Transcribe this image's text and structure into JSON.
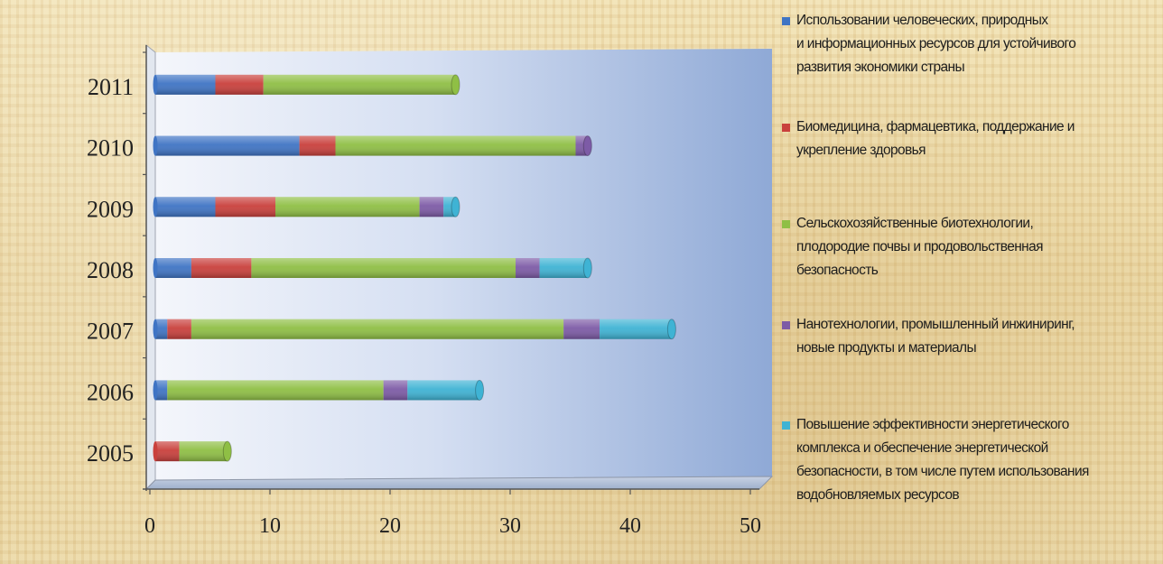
{
  "chart_data": {
    "type": "bar",
    "orientation": "horizontal",
    "stacked": true,
    "categories": [
      "2011",
      "2010",
      "2009",
      "2008",
      "2007",
      "2006",
      "2005"
    ],
    "xlim": [
      0,
      50
    ],
    "xticks": [
      "0",
      "10",
      "20",
      "30",
      "40",
      "50"
    ],
    "series": [
      {
        "name": "Использовании человеческих, природных и информационных ресурсов для устойчивого развития экономики страны",
        "color": "#3f74c4",
        "values": [
          5,
          12,
          5,
          3,
          1,
          1,
          0
        ]
      },
      {
        "name": "Биомедицина, фармацевтика, поддержание и укрепление здоровья",
        "color": "#c9403c",
        "values": [
          4,
          3,
          5,
          5,
          2,
          0,
          2
        ]
      },
      {
        "name": "Сельскохозяйственные биотехнологии, плодородие почвы и продовольственная безопасность",
        "color": "#8fbf45",
        "values": [
          16,
          20,
          12,
          22,
          31,
          18,
          4
        ]
      },
      {
        "name": "Нанотехнологии, промышленный инжиниринг, новые продукты и материалы",
        "color": "#7d5ba6",
        "values": [
          0,
          1,
          2,
          2,
          3,
          2,
          0
        ]
      },
      {
        "name": "Повышение эффективности энергетического комплекса и обеспечение энергетической безопасности, в том числе путем использования водобновляемых ресурсов",
        "color": "#3fb3d4",
        "values": [
          0,
          0,
          1,
          4,
          6,
          6,
          0
        ]
      }
    ],
    "grid": false,
    "legend_position": "right"
  },
  "legend": [
    {
      "lines": [
        "Использовании человеческих, природных",
        "и информационных ресурсов для устойчивого",
        "развития экономики страны"
      ],
      "color": "#3f74c4"
    },
    {
      "lines": [
        "Биомедицина, фармацевтика, поддержание и",
        "укрепление здоровья"
      ],
      "color": "#c9403c"
    },
    {
      "lines": [
        "Сельскохозяйственные биотехнологии,",
        "плодородие почвы и продовольственная",
        "безопасность"
      ],
      "color": "#8fbf45"
    },
    {
      "lines": [
        "Нанотехнологии, промышленный инжиниринг,",
        "новые продукты и материалы"
      ],
      "color": "#7d5ba6"
    },
    {
      "lines": [
        "Повышение эффективности энергетического",
        "комплекса и обеспечение энергетической",
        "безопасности, в том числе путем использования",
        "водобновляемых ресурсов"
      ],
      "color": "#3fb3d4"
    }
  ]
}
